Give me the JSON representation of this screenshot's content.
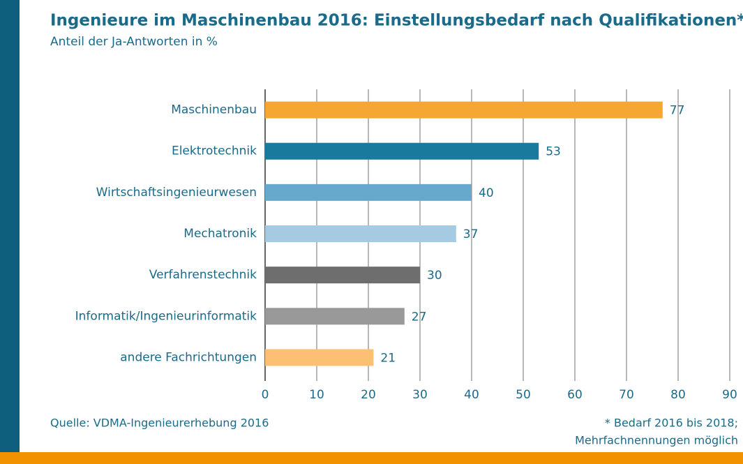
{
  "chart_data": {
    "type": "barh",
    "title": "Ingenieure im Maschinenbau 2016: Einstellungsbedarf nach Qualifikationen*",
    "subtitle": "Anteil der Ja-Antworten in %",
    "categories": [
      "Maschinenbau",
      "Elektrotechnik",
      "Wirtschaftsingenieurwesen",
      "Mechatronik",
      "Verfahrenstechnik",
      "Informatik/Ingenieurinformatik",
      "andere Fachrichtungen"
    ],
    "values": [
      77,
      53,
      40,
      37,
      30,
      27,
      21
    ],
    "colors": [
      "#f5a733",
      "#1a7a9e",
      "#66a9cc",
      "#a5cbe2",
      "#6e6e6e",
      "#999999",
      "#fdbf73"
    ],
    "xlim": [
      0,
      90
    ],
    "xticks": [
      0,
      10,
      20,
      30,
      40,
      50,
      60,
      70,
      80,
      90
    ],
    "grid": true,
    "source": "Quelle: VDMA-Ingenieurerhebung 2016",
    "footnote": [
      "* Bedarf 2016 bis 2018;",
      "Mehrfachnennungen möglich"
    ]
  }
}
